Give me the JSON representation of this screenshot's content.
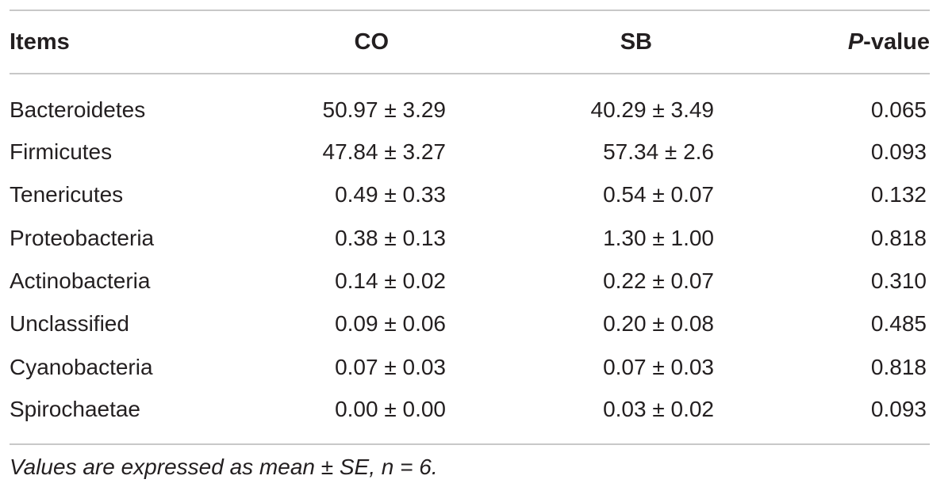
{
  "table": {
    "headers": {
      "items": "Items",
      "co": "CO",
      "sb": "SB",
      "p_italic": "P",
      "p_rest": "-value"
    },
    "rows": [
      {
        "item": "Bacteroidetes",
        "co": "50.97 ± 3.29",
        "sb": "40.29 ± 3.49",
        "p": "0.065"
      },
      {
        "item": "Firmicutes",
        "co": "47.84 ± 3.27",
        "sb": "57.34 ± 2.6",
        "p": "0.093"
      },
      {
        "item": "Tenericutes",
        "co": "0.49 ± 0.33",
        "sb": "0.54 ± 0.07",
        "p": "0.132"
      },
      {
        "item": "Proteobacteria",
        "co": "0.38 ± 0.13",
        "sb": "1.30 ± 1.00",
        "p": "0.818"
      },
      {
        "item": "Actinobacteria",
        "co": "0.14 ± 0.02",
        "sb": "0.22 ± 0.07",
        "p": "0.310"
      },
      {
        "item": "Unclassified",
        "co": "0.09 ± 0.06",
        "sb": "0.20 ± 0.08",
        "p": "0.485"
      },
      {
        "item": "Cyanobacteria",
        "co": "0.07 ± 0.03",
        "sb": "0.07 ± 0.03",
        "p": "0.818"
      },
      {
        "item": "Spirochaetae",
        "co": "0.00 ± 0.00",
        "sb": "0.03 ± 0.02",
        "p": "0.093"
      }
    ]
  },
  "footnote": "Values are expressed as mean ± SE, n = 6."
}
